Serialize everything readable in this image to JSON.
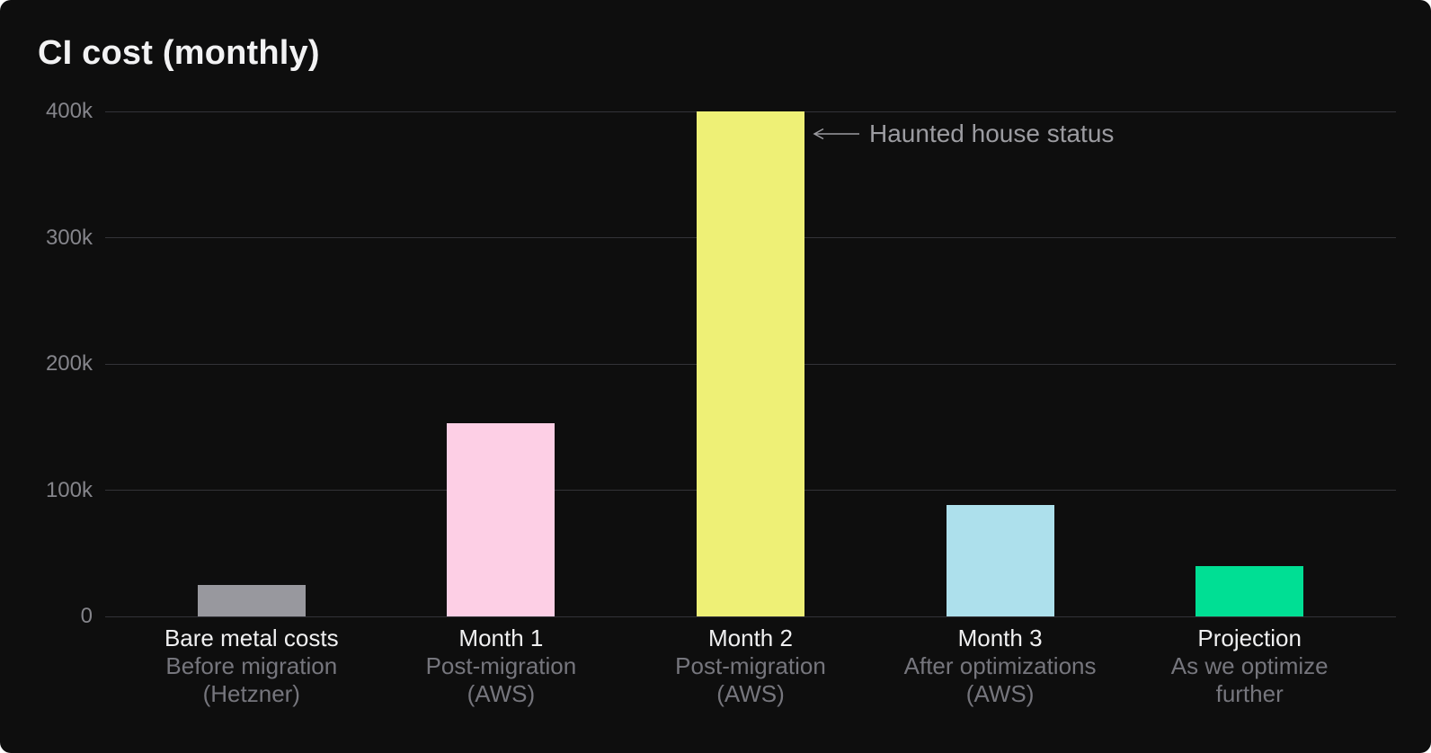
{
  "title": "CI cost (monthly)",
  "annotation": {
    "text": "Haunted house status",
    "points_to": "Month 2"
  },
  "colors": {
    "background": "#0E0E0E",
    "title_text": "#F2F2F3",
    "grid": "#333338",
    "ytick_text": "#85858B",
    "xlabel_main_text": "#F0F0F1",
    "xlabel_sub_text": "#76767D",
    "annotation_text": "#9C9CA1"
  },
  "chart_data": {
    "type": "bar",
    "title": "CI cost (monthly)",
    "categories": [
      "Bare metal costs",
      "Month 1",
      "Month 2",
      "Month 3",
      "Projection"
    ],
    "sublabels": [
      [
        "Before migration",
        "(Hetzner)"
      ],
      [
        "Post-migration",
        "(AWS)"
      ],
      [
        "Post-migration",
        "(AWS)"
      ],
      [
        "After optimizations",
        "(AWS)"
      ],
      [
        "As we optimize",
        "further"
      ]
    ],
    "values": [
      25000,
      153000,
      400000,
      88000,
      40000
    ],
    "bar_colors": [
      "#98989E",
      "#FDCFE5",
      "#EEF076",
      "#ADE0EC",
      "#00DF94"
    ],
    "xlabel": "",
    "ylabel": "",
    "ylim": [
      0,
      400000
    ],
    "yticks": [
      400000,
      300000,
      200000,
      100000,
      0
    ],
    "ytick_labels": [
      "400k",
      "300k",
      "200k",
      "100k",
      "0"
    ],
    "grid": true,
    "legend": false,
    "annotation": {
      "text": "Haunted house status",
      "points_to": "Month 2",
      "value_at_target": 400000
    }
  }
}
